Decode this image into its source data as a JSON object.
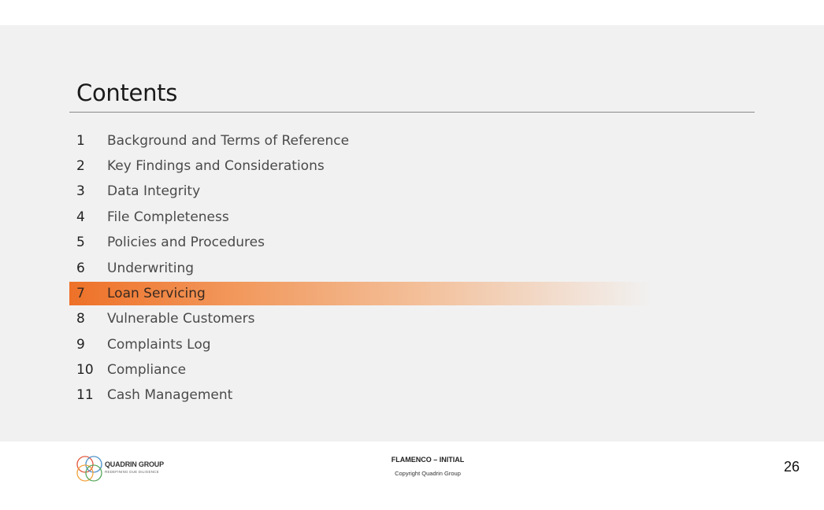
{
  "slide": {
    "title": "Contents",
    "toc": [
      {
        "number": "1",
        "label": "Background and Terms of Reference",
        "active": false
      },
      {
        "number": "2",
        "label": "Key Findings and Considerations",
        "active": false
      },
      {
        "number": "3",
        "label": "Data Integrity",
        "active": false
      },
      {
        "number": "4",
        "label": "File Completeness",
        "active": false
      },
      {
        "number": "5",
        "label": "Policies and Procedures",
        "active": false
      },
      {
        "number": "6",
        "label": "Underwriting",
        "active": false
      },
      {
        "number": "7",
        "label": "Loan Servicing",
        "active": true
      },
      {
        "number": "8",
        "label": "Vulnerable Customers",
        "active": false
      },
      {
        "number": "9",
        "label": "Complaints Log",
        "active": false
      },
      {
        "number": "10",
        "label": "Compliance",
        "active": false
      },
      {
        "number": "11",
        "label": "Cash Management",
        "active": false
      }
    ],
    "highlight_color": "#ee7128"
  },
  "footer": {
    "logo_name": "QUADRIN GROUP",
    "logo_tagline": "REDEFINING DUE DILIGENCE",
    "document_title": "FLAMENCO – INITIAL",
    "copyright": "Copyright Quadrin Group",
    "page_number": "26"
  }
}
